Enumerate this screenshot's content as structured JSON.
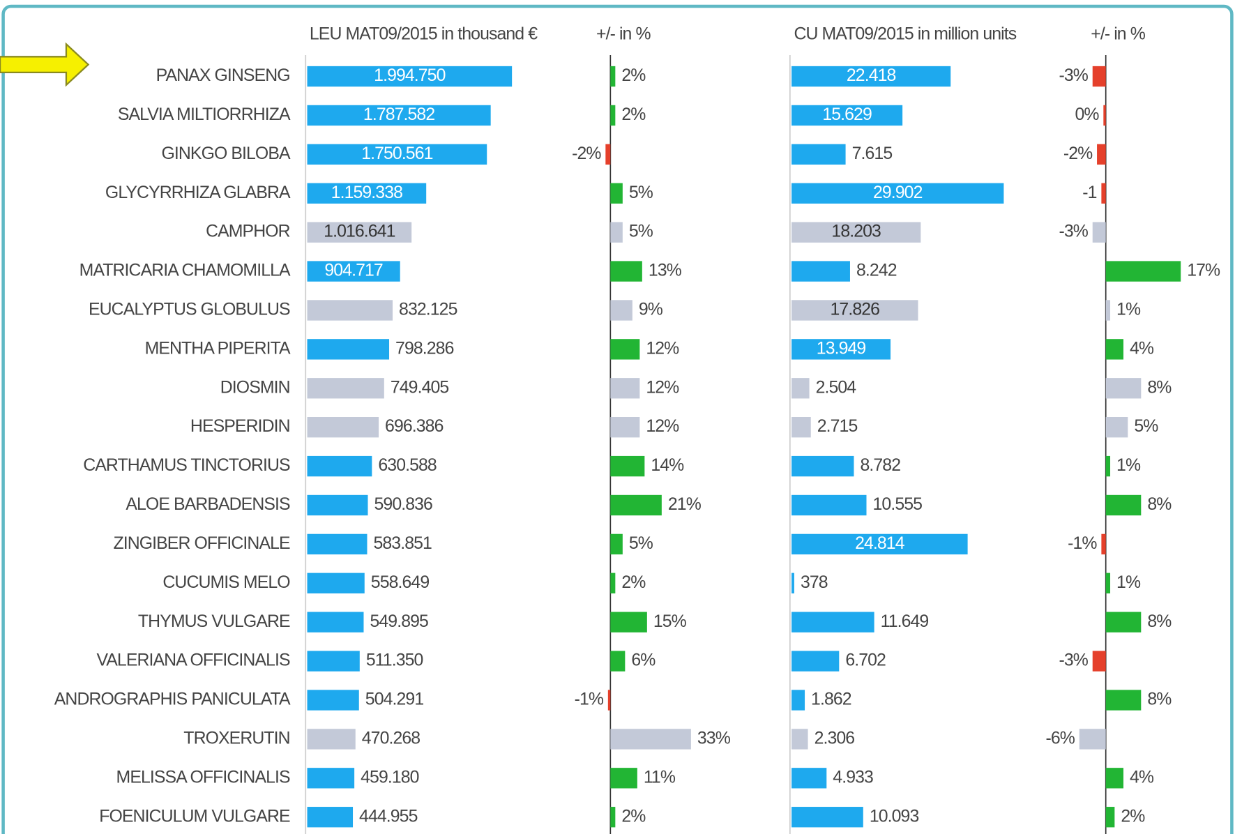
{
  "chart_data": {
    "type": "bar",
    "categories": [
      "PANAX GINSENG",
      "SALVIA MILTIORRHIZA",
      "GINKGO BILOBA",
      "GLYCYRRHIZA GLABRA",
      "CAMPHOR",
      "MATRICARIA CHAMOMILLA",
      "EUCALYPTUS GLOBULUS",
      "MENTHA PIPERITA",
      "DIOSMIN",
      "HESPERIDIN",
      "CARTHAMUS TINCTORIUS",
      "ALOE BARBADENSIS",
      "ZINGIBER OFFICINALE",
      "CUCUMIS MELO",
      "THYMUS VULGARE",
      "VALERIANA OFFICINALIS",
      "ANDROGRAPHIS PANICULATA",
      "TROXERUTIN",
      "MELISSA OFFICINALIS",
      "FOENICULUM VULGARE"
    ],
    "series": [
      {
        "name": "LEU MAT09/2015 in thousand €",
        "values": [
          1994750,
          1787582,
          1750561,
          1159338,
          1016641,
          904717,
          832125,
          798286,
          749405,
          696386,
          630588,
          590836,
          583851,
          558649,
          549895,
          511350,
          504291,
          470268,
          459180,
          444955
        ],
        "value_labels": [
          "1.994.750",
          "1.787.582",
          "1.750.561",
          "1.159.338",
          "1.016.641",
          "904.717",
          "832.125",
          "798.286",
          "749.405",
          "696.386",
          "630.588",
          "590.836",
          "583.851",
          "558.649",
          "549.895",
          "511.350",
          "504.291",
          "470.268",
          "459.180",
          "444.955"
        ],
        "colors": [
          "#1ea9ee",
          "#1ea9ee",
          "#1ea9ee",
          "#1ea9ee",
          "#c3c9d8",
          "#1ea9ee",
          "#c3c9d8",
          "#1ea9ee",
          "#c3c9d8",
          "#c3c9d8",
          "#1ea9ee",
          "#1ea9ee",
          "#1ea9ee",
          "#1ea9ee",
          "#1ea9ee",
          "#1ea9ee",
          "#1ea9ee",
          "#c3c9d8",
          "#1ea9ee",
          "#1ea9ee"
        ]
      },
      {
        "name": "+/- in %",
        "values": [
          2,
          2,
          -2,
          5,
          5,
          13,
          9,
          12,
          12,
          12,
          14,
          21,
          5,
          2,
          15,
          6,
          -1,
          33,
          11,
          2
        ],
        "value_labels": [
          "2%",
          "2%",
          "-2%",
          "5%",
          "5%",
          "13%",
          "9%",
          "12%",
          "12%",
          "12%",
          "14%",
          "21%",
          "5%",
          "2%",
          "15%",
          "6%",
          "-1%",
          "33%",
          "11%",
          "2%"
        ],
        "colors": [
          "#22b534",
          "#22b534",
          "#e5402b",
          "#22b534",
          "#c3c9d8",
          "#22b534",
          "#c3c9d8",
          "#22b534",
          "#c3c9d8",
          "#c3c9d8",
          "#22b534",
          "#22b534",
          "#22b534",
          "#22b534",
          "#22b534",
          "#22b534",
          "#e5402b",
          "#c3c9d8",
          "#22b534",
          "#22b534"
        ]
      },
      {
        "name": "CU MAT09/2015 in million units",
        "values": [
          22418,
          15629,
          7615,
          29902,
          18203,
          8242,
          17826,
          13949,
          2504,
          2715,
          8782,
          10555,
          24814,
          378,
          11649,
          6702,
          1862,
          2306,
          4933,
          10093
        ],
        "value_labels": [
          "22.418",
          "15.629",
          "7.615",
          "29.902",
          "18.203",
          "8.242",
          "17.826",
          "13.949",
          "2.504",
          "2.715",
          "8.782",
          "10.555",
          "24.814",
          "378",
          "11.649",
          "6.702",
          "1.862",
          "2.306",
          "4.933",
          "10.093"
        ],
        "colors": [
          "#1ea9ee",
          "#1ea9ee",
          "#1ea9ee",
          "#1ea9ee",
          "#c3c9d8",
          "#1ea9ee",
          "#c3c9d8",
          "#1ea9ee",
          "#c3c9d8",
          "#c3c9d8",
          "#1ea9ee",
          "#1ea9ee",
          "#1ea9ee",
          "#1ea9ee",
          "#1ea9ee",
          "#1ea9ee",
          "#1ea9ee",
          "#c3c9d8",
          "#1ea9ee",
          "#1ea9ee"
        ]
      },
      {
        "name": "+/- in %",
        "values": [
          -3,
          0,
          -2,
          -1,
          -3,
          17,
          1,
          4,
          8,
          5,
          1,
          8,
          -1,
          1,
          8,
          -3,
          8,
          -6,
          4,
          2
        ],
        "value_labels": [
          "-3%",
          "0%",
          "-2%",
          "-1",
          "-3%",
          "17%",
          "1%",
          "4%",
          "8%",
          "5%",
          "1%",
          "8%",
          "-1%",
          "1%",
          "8%",
          "-3%",
          "8%",
          "-6%",
          "4%",
          "2%"
        ],
        "colors": [
          "#e5402b",
          "#e5402b",
          "#e5402b",
          "#e5402b",
          "#c3c9d8",
          "#22b534",
          "#c3c9d8",
          "#22b534",
          "#c3c9d8",
          "#c3c9d8",
          "#22b534",
          "#22b534",
          "#e5402b",
          "#22b534",
          "#22b534",
          "#e5402b",
          "#22b534",
          "#c3c9d8",
          "#22b534",
          "#22b534"
        ]
      }
    ]
  }
}
